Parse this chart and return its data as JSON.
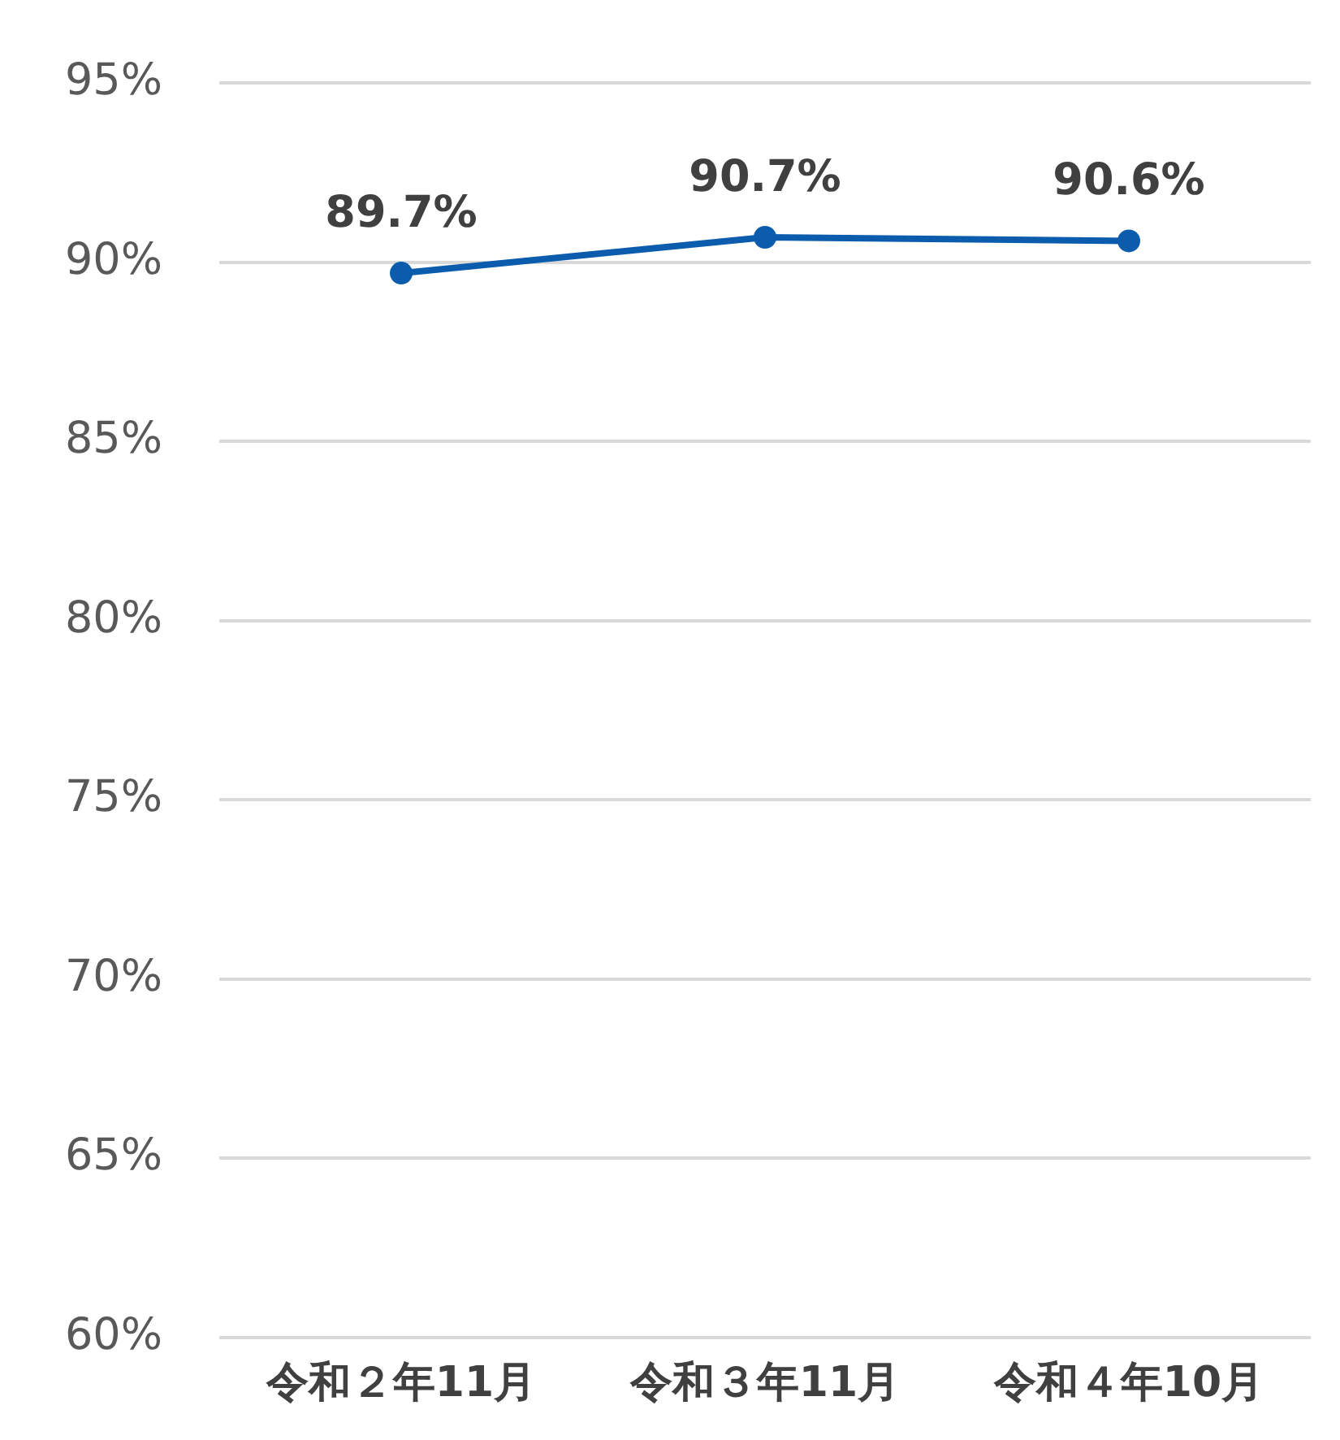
{
  "chart_data": {
    "type": "line",
    "categories": [
      "令和２年11月",
      "令和３年11月",
      "令和４年10月"
    ],
    "series": [
      {
        "color": "#0b5cad",
        "values": [
          89.7,
          90.7,
          90.6
        ],
        "value_labels": [
          "89.7%",
          "90.7%",
          "90.6%"
        ]
      }
    ],
    "ylim": [
      60,
      95
    ],
    "yticks": [
      {
        "value": 60,
        "label": "60%"
      },
      {
        "value": 65,
        "label": "65%"
      },
      {
        "value": 70,
        "label": "70%"
      },
      {
        "value": 75,
        "label": "75%"
      },
      {
        "value": 80,
        "label": "80%"
      },
      {
        "value": 85,
        "label": "85%"
      },
      {
        "value": 90,
        "label": "90%"
      },
      {
        "value": 95,
        "label": "95%"
      }
    ],
    "grid": "y",
    "legend": false,
    "marker": "circle",
    "line_style": "solid"
  }
}
